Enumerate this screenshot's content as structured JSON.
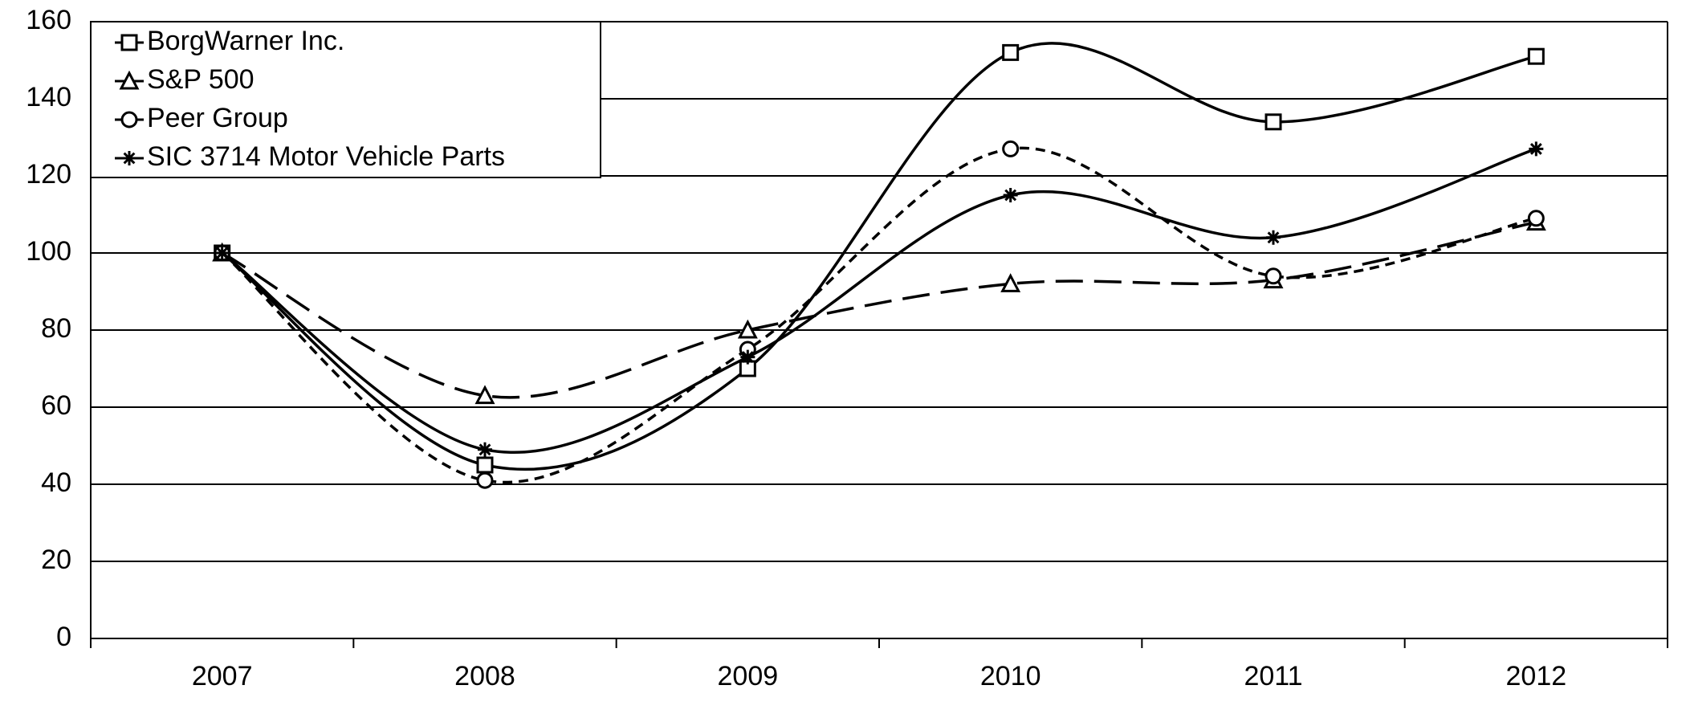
{
  "chart_data": {
    "type": "line",
    "categories": [
      "2007",
      "2008",
      "2009",
      "2010",
      "2011",
      "2012"
    ],
    "series": [
      {
        "name": "BorgWarner Inc.",
        "color": "#000000",
        "marker": "square",
        "line_style": "solid",
        "values": [
          100,
          45,
          70,
          152,
          134,
          151
        ]
      },
      {
        "name": "S&P 500",
        "color": "#000000",
        "marker": "triangle",
        "line_style": "long-dash",
        "values": [
          100,
          63,
          80,
          92,
          93,
          108
        ]
      },
      {
        "name": "Peer Group",
        "color": "#000000",
        "marker": "circle",
        "line_style": "short-dash",
        "values": [
          100,
          41,
          75,
          127,
          94,
          109
        ]
      },
      {
        "name": "SIC 3714 Motor Vehicle Parts",
        "color": "#000000",
        "marker": "asterisk",
        "line_style": "solid",
        "values": [
          100,
          49,
          73,
          115,
          104,
          127
        ]
      }
    ],
    "ylim": [
      0,
      160
    ],
    "yticks": [
      0,
      20,
      40,
      60,
      80,
      100,
      120,
      140,
      160
    ],
    "grid": true,
    "legend": "top-left"
  }
}
